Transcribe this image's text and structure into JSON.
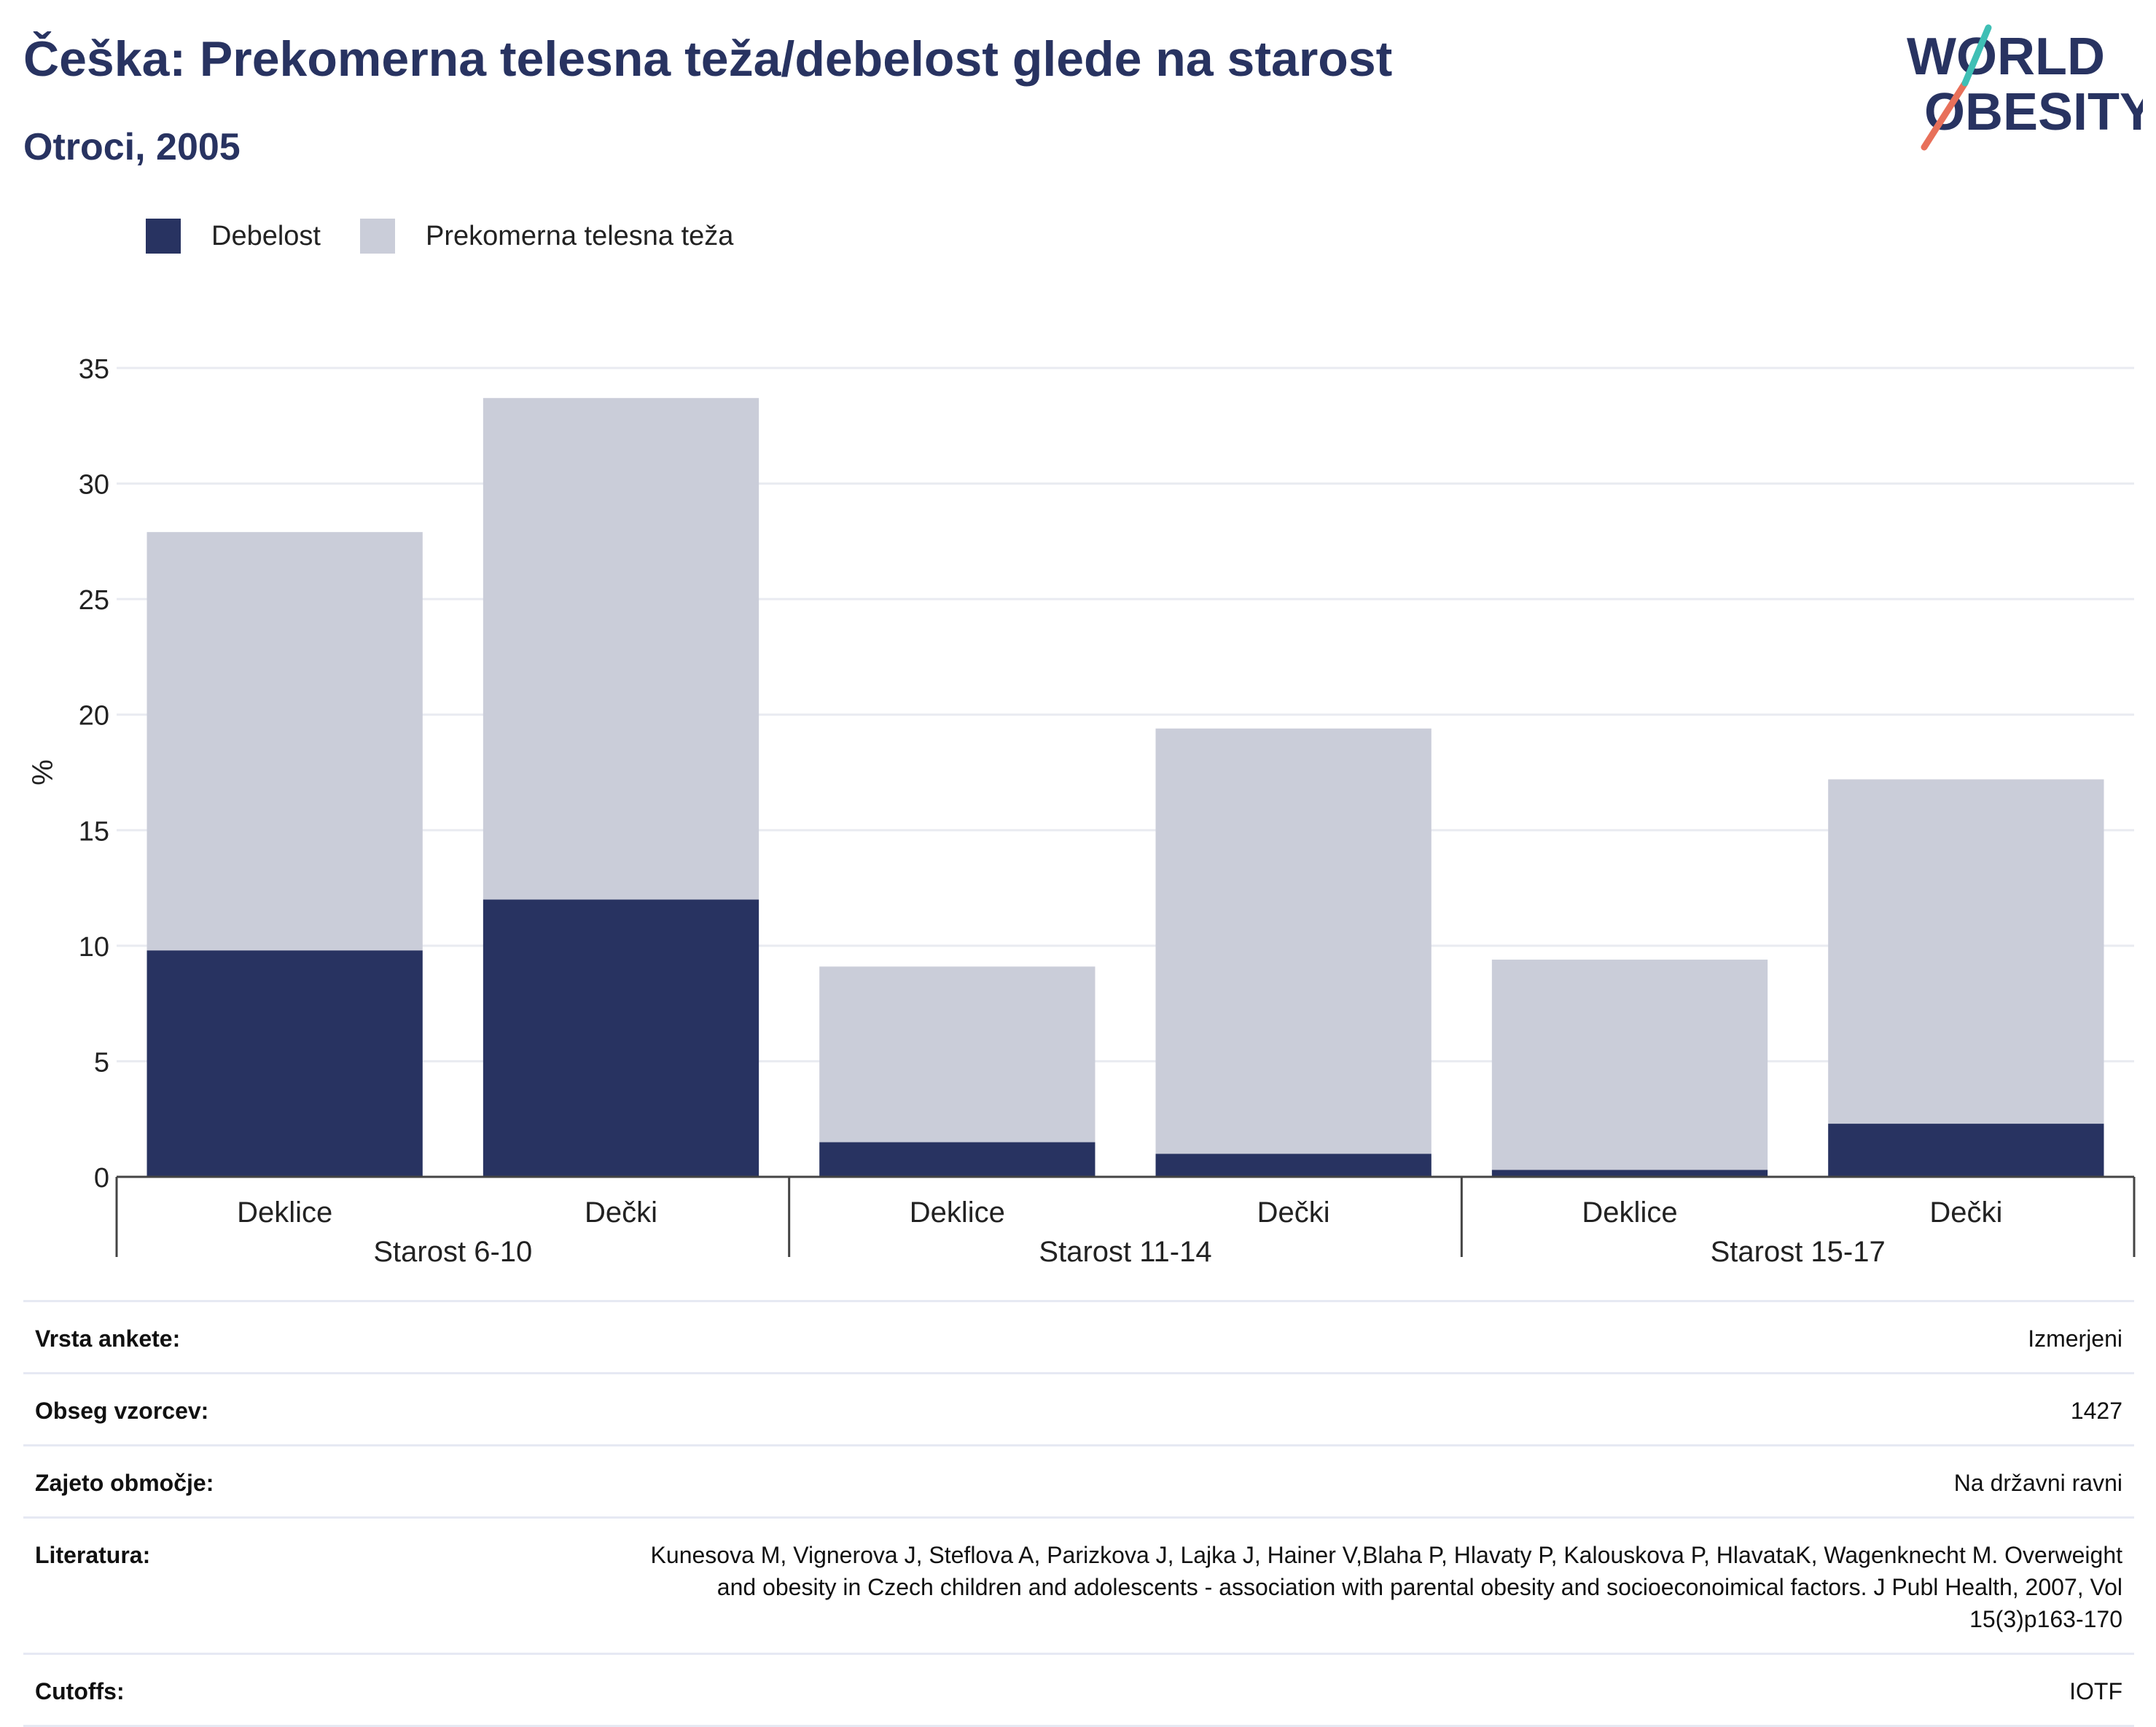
{
  "header": {
    "title": "Češka: Prekomerna telesna teža/debelost glede na starost",
    "subtitle": "Otroci, 2005"
  },
  "logo": {
    "line1": "WORLD",
    "line2": "OBESITY",
    "colors": [
      "#283361",
      "#e8705a",
      "#3fbfb5"
    ]
  },
  "legend": [
    {
      "label": "Debelost",
      "color": "#283361"
    },
    {
      "label": "Prekomerna telesna teža",
      "color": "#cacdd9"
    }
  ],
  "chart_data": {
    "type": "bar",
    "stacked": true,
    "ylabel": "%",
    "ylim": [
      0,
      35
    ],
    "yticks": [
      0,
      5,
      10,
      15,
      20,
      25,
      30,
      35
    ],
    "grid": true,
    "legend_position": "top-left",
    "groups": [
      {
        "label": "Starost 6-10",
        "categories": [
          "Deklice",
          "Dečki"
        ]
      },
      {
        "label": "Starost 11-14",
        "categories": [
          "Deklice",
          "Dečki"
        ]
      },
      {
        "label": "Starost 15-17",
        "categories": [
          "Deklice",
          "Dečki"
        ]
      }
    ],
    "categories": [
      "Deklice",
      "Dečki",
      "Deklice",
      "Dečki",
      "Deklice",
      "Dečki"
    ],
    "series": [
      {
        "name": "Debelost",
        "color": "#283361",
        "values": [
          9.8,
          12.0,
          1.5,
          1.0,
          0.3,
          2.3
        ]
      },
      {
        "name": "Prekomerna telesna teža",
        "color": "#cacdd9",
        "values": [
          18.1,
          21.7,
          7.6,
          18.4,
          9.1,
          14.9
        ]
      }
    ]
  },
  "info_table": [
    {
      "label": "Vrsta ankete:",
      "value": "Izmerjeni"
    },
    {
      "label": "Obseg vzorcev:",
      "value": "1427"
    },
    {
      "label": "Zajeto območje:",
      "value": "Na državni ravni"
    },
    {
      "label": "Literatura:",
      "value": "Kunesova M, Vignerova J, Steflova A, Parizkova J, Lajka J, Hainer V,Blaha P, Hlavaty P, Kalouskova P, HlavataK, Wagenknecht M. Overweight and obesity in Czech children and adolescents - association with parental obesity and socioeconoimical factors. J Publ Health, 2007, Vol 15(3)p163-170"
    },
    {
      "label": "Cutoffs:",
      "value": "IOTF"
    }
  ]
}
